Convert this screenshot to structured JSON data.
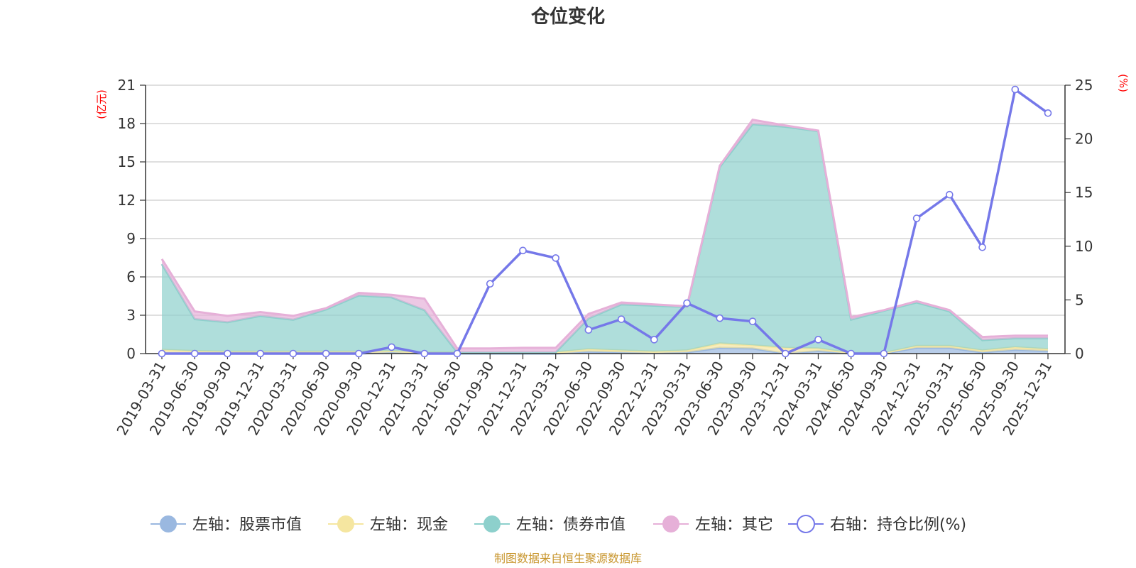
{
  "chart_data": {
    "type": "area",
    "title": "仓位变化",
    "left_axis_unit": "(亿元)",
    "right_axis_unit": "(%)",
    "left_axis": {
      "min": 0,
      "max": 21,
      "ticks": [
        "0",
        "3",
        "6",
        "9",
        "12",
        "15",
        "18",
        "21"
      ]
    },
    "right_axis": {
      "min": 0,
      "max": 25,
      "ticks": [
        "0",
        "5",
        "10",
        "15",
        "20",
        "25"
      ]
    },
    "categories": [
      "2019-03-31",
      "2019-06-30",
      "2019-09-30",
      "2019-12-31",
      "2020-03-31",
      "2020-06-30",
      "2020-09-30",
      "2020-12-31",
      "2021-03-31",
      "2021-06-30",
      "2021-09-30",
      "2021-12-31",
      "2022-03-31",
      "2022-06-30",
      "2022-09-30",
      "2022-12-31",
      "2023-03-31",
      "2023-06-30",
      "2023-09-30",
      "2023-12-31",
      "2024-03-31",
      "2024-06-30",
      "2024-09-30",
      "2024-12-31",
      "2025-03-31",
      "2025-06-30",
      "2025-09-30",
      "2025-12-31"
    ],
    "series": [
      {
        "name": "左轴：股票市值",
        "axis": "left",
        "color": "#9ab8e0",
        "values": [
          0,
          0,
          0,
          0,
          0,
          0,
          0,
          0.1,
          0,
          0,
          0,
          0,
          0,
          0.15,
          0.1,
          0.05,
          0.1,
          0.45,
          0.4,
          0,
          0.2,
          0,
          0,
          0.45,
          0.45,
          0.1,
          0.3,
          0.2
        ]
      },
      {
        "name": "左轴：现金",
        "axis": "left",
        "color": "#f5e6a0",
        "values": [
          0.3,
          0.2,
          0.15,
          0.15,
          0.15,
          0.15,
          0.15,
          0.1,
          0.1,
          0.1,
          0.1,
          0.1,
          0.1,
          0.2,
          0.15,
          0.1,
          0.15,
          0.35,
          0.25,
          0.45,
          0.2,
          0.05,
          0.05,
          0.15,
          0.15,
          0.15,
          0.2,
          0.15
        ]
      },
      {
        "name": "左轴：债券市值",
        "axis": "left",
        "color": "#8dd0cc",
        "values": [
          6.7,
          2.5,
          2.3,
          2.8,
          2.5,
          3.3,
          4.4,
          4.2,
          3.3,
          0,
          0,
          0,
          0,
          2.4,
          3.6,
          3.6,
          3.4,
          13.8,
          17.3,
          17.3,
          17.0,
          2.6,
          3.3,
          3.4,
          2.7,
          0.8,
          0.7,
          0.85
        ]
      },
      {
        "name": "左轴：其它",
        "axis": "left",
        "color": "#e6b0d8",
        "values": [
          0.4,
          0.6,
          0.5,
          0.3,
          0.3,
          0.1,
          0.2,
          0.2,
          0.9,
          0.3,
          0.3,
          0.35,
          0.35,
          0.35,
          0.15,
          0.1,
          0.05,
          0.1,
          0.35,
          0.1,
          0.05,
          0.2,
          0.05,
          0.1,
          0.1,
          0.25,
          0.2,
          0.2
        ]
      },
      {
        "name": "右轴：持仓比例(%)",
        "axis": "right",
        "color": "#7578e9",
        "values": [
          0,
          0,
          0,
          0,
          0,
          0,
          0,
          0.6,
          0,
          0,
          6.5,
          9.6,
          8.9,
          2.2,
          3.2,
          1.3,
          4.7,
          3.3,
          3.0,
          0,
          1.3,
          0,
          0,
          12.6,
          14.8,
          9.9,
          24.6,
          22.4
        ]
      }
    ],
    "legend_position": "bottom",
    "grid": true
  },
  "source_note": "制图数据来自恒生聚源数据库"
}
